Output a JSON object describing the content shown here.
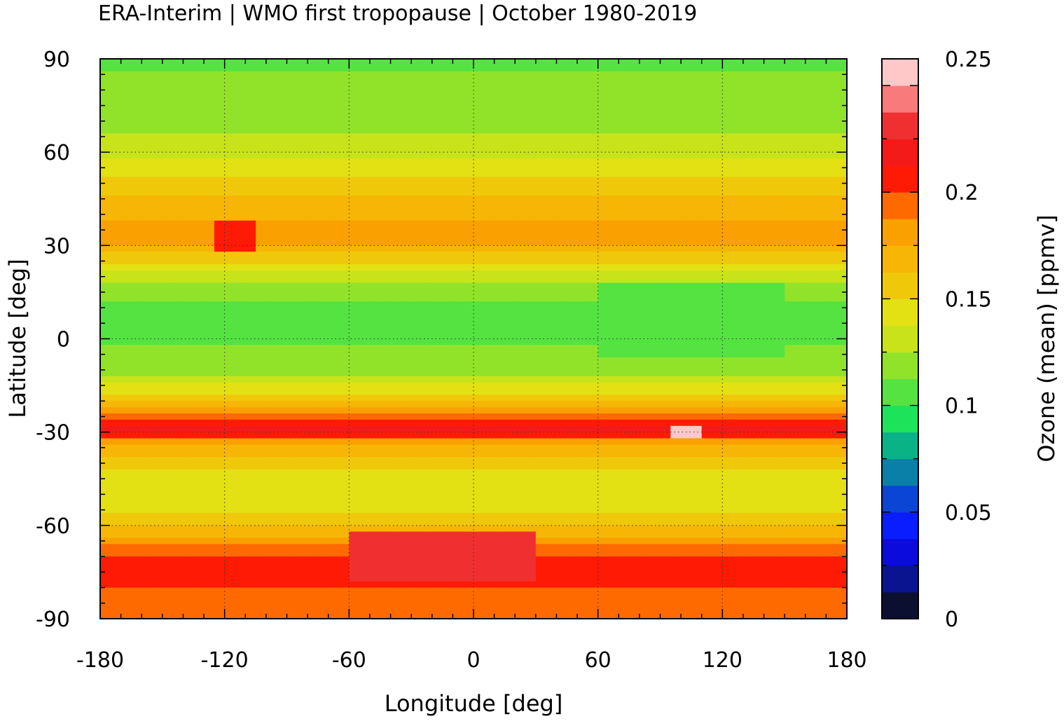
{
  "chart_data": {
    "type": "heatmap",
    "title": "ERA-Interim | WMO first tropopause | October 1980-2019",
    "xlabel": "Longitude [deg]",
    "ylabel": "Latitude [deg]",
    "colorbar_label": "Ozone (mean) [ppmv]",
    "xlim": [
      -180,
      180
    ],
    "ylim": [
      -90,
      90
    ],
    "x_ticks": [
      "-180",
      "-120",
      "-60",
      "0",
      "60",
      "120",
      "180"
    ],
    "y_ticks": [
      "90",
      "60",
      "30",
      "0",
      "-30",
      "-60",
      "-90"
    ],
    "colorbar_ticks": [
      "0.25",
      "0.2",
      "0.15",
      "0.1",
      "0.05",
      "0"
    ],
    "colorbar_range": [
      0,
      0.25
    ],
    "grid": true,
    "colorbar_levels": [
      {
        "from": 0.0,
        "to": 0.0125,
        "color": "#0b0f30"
      },
      {
        "from": 0.0125,
        "to": 0.025,
        "color": "#0a1390"
      },
      {
        "from": 0.025,
        "to": 0.0375,
        "color": "#0a0bdc"
      },
      {
        "from": 0.0375,
        "to": 0.05,
        "color": "#0a1dff"
      },
      {
        "from": 0.05,
        "to": 0.0625,
        "color": "#0a45d6"
      },
      {
        "from": 0.0625,
        "to": 0.075,
        "color": "#0a80a8"
      },
      {
        "from": 0.075,
        "to": 0.0875,
        "color": "#0ab385"
      },
      {
        "from": 0.0875,
        "to": 0.1,
        "color": "#1de35a"
      },
      {
        "from": 0.1,
        "to": 0.1125,
        "color": "#55e342"
      },
      {
        "from": 0.1125,
        "to": 0.125,
        "color": "#91e32a"
      },
      {
        "from": 0.125,
        "to": 0.1375,
        "color": "#c8e31a"
      },
      {
        "from": 0.1375,
        "to": 0.15,
        "color": "#e3e014"
      },
      {
        "from": 0.15,
        "to": 0.1625,
        "color": "#f0c80a"
      },
      {
        "from": 0.1625,
        "to": 0.175,
        "color": "#f7b505"
      },
      {
        "from": 0.175,
        "to": 0.1875,
        "color": "#faa000"
      },
      {
        "from": 0.1875,
        "to": 0.2,
        "color": "#ff6a00"
      },
      {
        "from": 0.2,
        "to": 0.2125,
        "color": "#ff1a05"
      },
      {
        "from": 0.2125,
        "to": 0.225,
        "color": "#f51a1a"
      },
      {
        "from": 0.225,
        "to": 0.2375,
        "color": "#f03030"
      },
      {
        "from": 0.2375,
        "to": 0.25,
        "color": "#f87a7a"
      },
      {
        "from": 0.25,
        "to": 0.2625,
        "color": "#ffc8c8"
      }
    ],
    "zonal_mean_profile": [
      {
        "lat": 90,
        "value": 0.11
      },
      {
        "lat": 80,
        "value": 0.115
      },
      {
        "lat": 70,
        "value": 0.12
      },
      {
        "lat": 60,
        "value": 0.13
      },
      {
        "lat": 50,
        "value": 0.155
      },
      {
        "lat": 40,
        "value": 0.17
      },
      {
        "lat": 33,
        "value": 0.185
      },
      {
        "lat": 25,
        "value": 0.15
      },
      {
        "lat": 15,
        "value": 0.115
      },
      {
        "lat": 5,
        "value": 0.105
      },
      {
        "lat": 0,
        "value": 0.11
      },
      {
        "lat": -10,
        "value": 0.12
      },
      {
        "lat": -20,
        "value": 0.16
      },
      {
        "lat": -25,
        "value": 0.19
      },
      {
        "lat": -29,
        "value": 0.215
      },
      {
        "lat": -35,
        "value": 0.17
      },
      {
        "lat": -45,
        "value": 0.14
      },
      {
        "lat": -55,
        "value": 0.145
      },
      {
        "lat": -62,
        "value": 0.17
      },
      {
        "lat": -70,
        "value": 0.2
      },
      {
        "lat": -80,
        "value": 0.2
      },
      {
        "lat": -90,
        "value": 0.19
      }
    ],
    "features": [
      {
        "lon_range": [
          -125,
          -105
        ],
        "lat_range": [
          28,
          38
        ],
        "value": 0.21
      },
      {
        "lon_range": [
          95,
          110
        ],
        "lat_range": [
          -32,
          -28
        ],
        "value": 0.25
      },
      {
        "lon_range": [
          -60,
          30
        ],
        "lat_range": [
          -78,
          -62
        ],
        "value": 0.225
      },
      {
        "lon_range": [
          60,
          150
        ],
        "lat_range": [
          -5,
          18
        ],
        "value": 0.1
      }
    ]
  }
}
